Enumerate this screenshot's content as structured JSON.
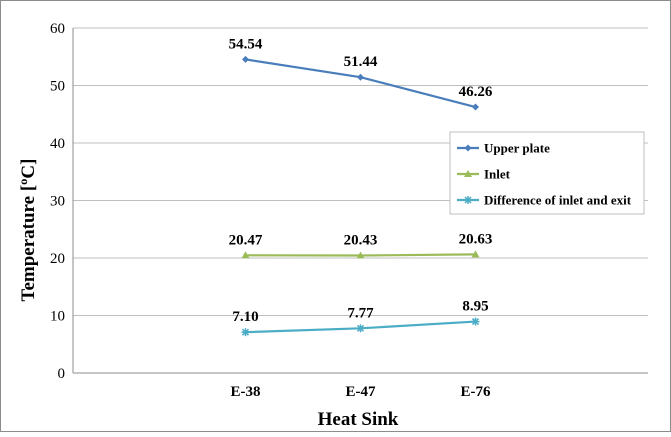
{
  "chart_data": {
    "type": "line",
    "title": "",
    "xlabel": "Heat Sink",
    "ylabel": "Temperature [ºC]",
    "categories": [
      "E-38",
      "E-47",
      "E-76"
    ],
    "ylim": [
      0,
      60
    ],
    "yticks": [
      "0",
      "10",
      "20",
      "30",
      "40",
      "50",
      "60"
    ],
    "grid": "horizontal",
    "legend_position": "right",
    "series": [
      {
        "name": "Upper plate",
        "values": [
          54.54,
          51.44,
          46.26
        ],
        "labels": [
          "54.54",
          "51.44",
          "46.26"
        ],
        "color": "#4a7ebb",
        "marker": "diamond"
      },
      {
        "name": "Inlet",
        "values": [
          20.47,
          20.43,
          20.63
        ],
        "labels": [
          "20.47",
          "20.43",
          "20.63"
        ],
        "color": "#9bbb59",
        "marker": "triangle"
      },
      {
        "name": "Difference of inlet and exit",
        "values": [
          7.1,
          7.77,
          8.95
        ],
        "labels": [
          "7.10",
          "7.77",
          "8.95"
        ],
        "color": "#4bacc6",
        "marker": "star"
      }
    ]
  }
}
